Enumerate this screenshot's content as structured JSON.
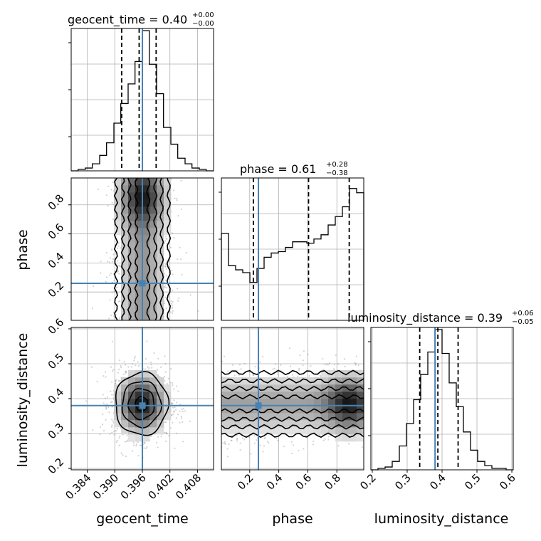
{
  "chart_data": {
    "type": "corner",
    "parameters": [
      "geocent_time",
      "phase",
      "luminosity_distance"
    ],
    "truths": {
      "geocent_time": 0.396,
      "phase": 0.26,
      "luminosity_distance": 0.38
    },
    "ranges": {
      "geocent_time": [
        0.3805,
        0.4115
      ],
      "phase": [
        0.005,
        0.985
      ],
      "luminosity_distance": [
        0.196,
        0.604
      ]
    },
    "ticks": {
      "geocent_time": [
        0.384,
        0.39,
        0.396,
        0.402,
        0.408
      ],
      "phase": [
        0.2,
        0.4,
        0.6,
        0.8
      ],
      "luminosity_distance": [
        0.2,
        0.3,
        0.4,
        0.5,
        0.6
      ]
    },
    "tick_labels": {
      "geocent_time": [
        "0.384",
        "0.390",
        "0.396",
        "0.402",
        "0.408"
      ],
      "phase_x": [
        "0.2",
        "0.4",
        "0.6",
        "0.8"
      ],
      "phase_y": [
        "0.2",
        "0.4",
        "0.6",
        "0.8"
      ],
      "luminosity_distance_x": [
        "0.2",
        "0.3",
        "0.4",
        "0.5",
        "0.6"
      ],
      "luminosity_distance_y": [
        "0.2",
        "0.3",
        "0.4",
        "0.5",
        "0.6"
      ]
    },
    "titles": [
      {
        "param": "geocent_time",
        "prefix": "geocent_time = 0.40",
        "plus": "+0.00",
        "minus": "−0.00"
      },
      {
        "param": "phase",
        "prefix": "phase = 0.61",
        "plus": "+0.28",
        "minus": "−0.38"
      },
      {
        "param": "luminosity_distance",
        "prefix": "luminosity_distance = 0.39",
        "plus": "+0.06",
        "minus": "−0.05"
      }
    ],
    "quantiles": {
      "geocent_time": [
        0.3915,
        0.3953,
        0.399
      ],
      "phase": [
        0.225,
        0.605,
        0.885
      ],
      "luminosity_distance": [
        0.336,
        0.388,
        0.446
      ]
    },
    "histograms": {
      "geocent_time": {
        "edges": [
          0.3805,
          0.382,
          0.3836,
          0.3851,
          0.3867,
          0.3882,
          0.3898,
          0.3913,
          0.3929,
          0.3944,
          0.396,
          0.3975,
          0.3991,
          0.4006,
          0.4022,
          0.4037,
          0.4053,
          0.4068,
          0.4084,
          0.4099,
          0.4115
        ],
        "counts": [
          0.0,
          0.01,
          0.02,
          0.05,
          0.11,
          0.2,
          0.34,
          0.48,
          0.62,
          0.78,
          1.0,
          0.76,
          0.55,
          0.31,
          0.19,
          0.09,
          0.05,
          0.02,
          0.01,
          0.0
        ]
      },
      "phase": {
        "edges": [
          0.005,
          0.054,
          0.103,
          0.152,
          0.201,
          0.25,
          0.299,
          0.348,
          0.397,
          0.446,
          0.495,
          0.544,
          0.593,
          0.642,
          0.691,
          0.74,
          0.789,
          0.838,
          0.887,
          0.936,
          0.985
        ],
        "counts": [
          0.62,
          0.39,
          0.36,
          0.34,
          0.27,
          0.37,
          0.45,
          0.48,
          0.49,
          0.52,
          0.56,
          0.56,
          0.55,
          0.58,
          0.61,
          0.68,
          0.74,
          0.81,
          0.94,
          0.91
        ]
      },
      "luminosity_distance": {
        "edges": [
          0.196,
          0.2164,
          0.2368,
          0.2572,
          0.2776,
          0.298,
          0.3184,
          0.3388,
          0.3592,
          0.3796,
          0.4,
          0.4204,
          0.4408,
          0.4612,
          0.4816,
          0.502,
          0.5224,
          0.5428,
          0.5632,
          0.5836,
          0.604
        ],
        "counts": [
          0.0,
          0.01,
          0.02,
          0.06,
          0.17,
          0.33,
          0.5,
          0.68,
          0.84,
          1.0,
          0.83,
          0.62,
          0.45,
          0.27,
          0.14,
          0.06,
          0.03,
          0.01,
          0.01,
          0.0
        ]
      }
    },
    "density_2d": {
      "phase_vs_geocent_time": {
        "x_center": 0.396,
        "x_sigma": 0.0032,
        "y_center": 0.6,
        "y_sigma": 0.26
      },
      "luminosity_distance_vs_geocent_time": {
        "x_center": 0.3958,
        "x_sigma": 0.0032,
        "y_center": 0.385,
        "y_sigma": 0.05
      },
      "luminosity_distance_vs_phase": {
        "x_center": 0.62,
        "x_sigma": 0.3,
        "y_center": 0.385,
        "y_sigma": 0.05
      }
    },
    "colors": {
      "truth": "#4682b4",
      "hist": "#000000",
      "grid": "#b0b0b0",
      "points": "#808080"
    }
  }
}
